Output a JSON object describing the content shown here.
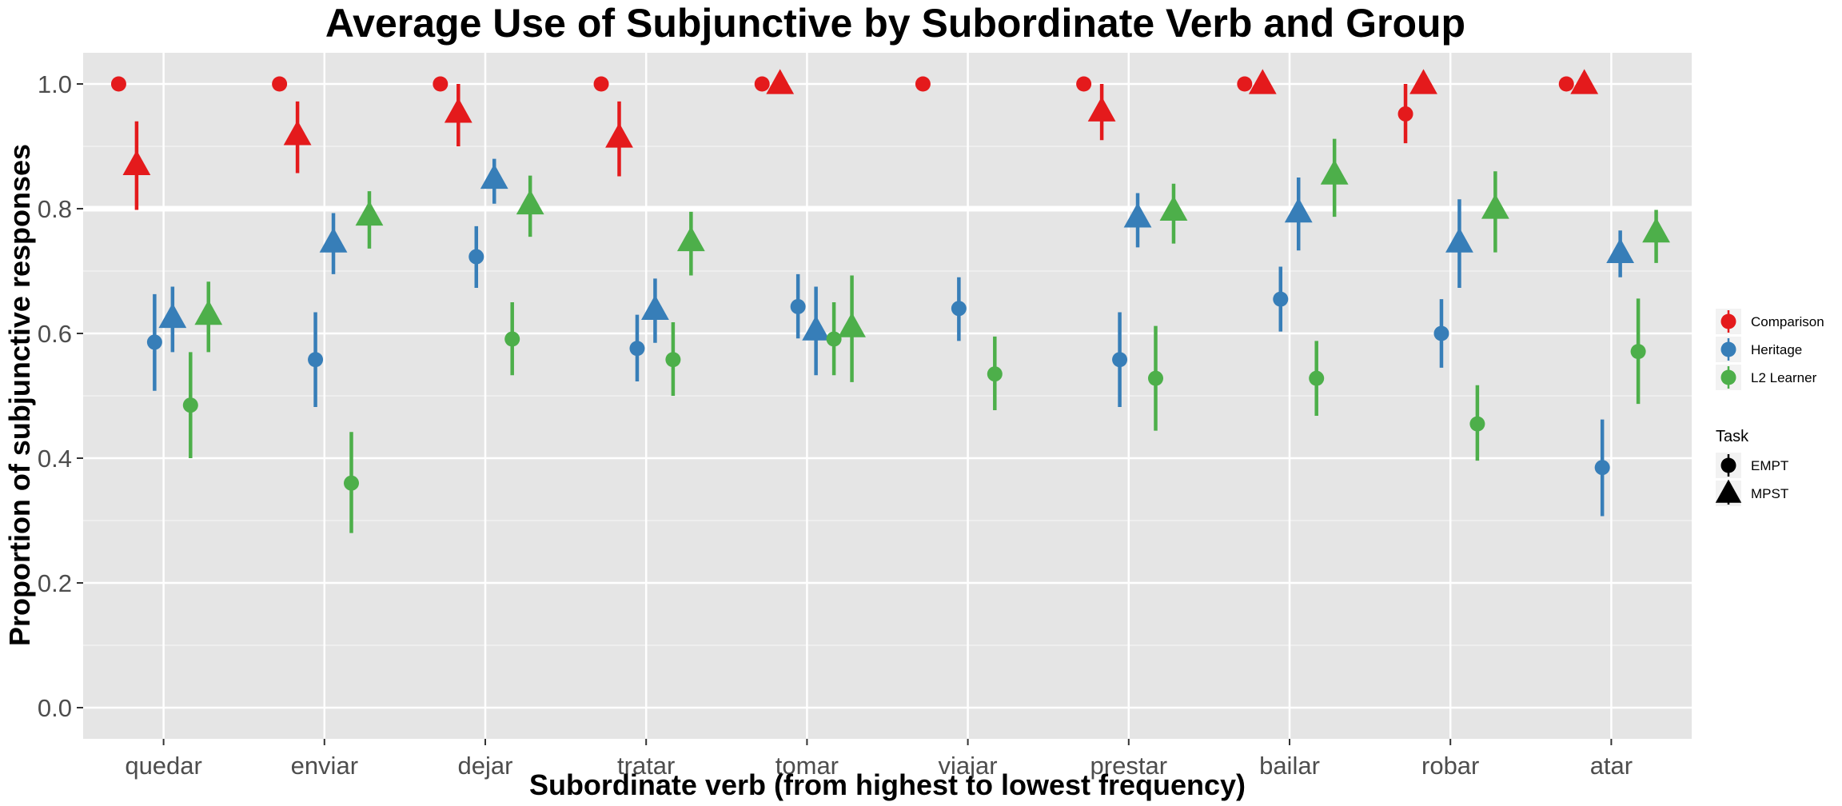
{
  "chart_data": {
    "type": "scatter",
    "title": "Average Use of Subjunctive by Subordinate Verb and Group",
    "xlabel": "Subordinate verb (from highest to lowest frequency)",
    "ylabel": "Proportion of subjunctive responses",
    "categories": [
      "quedar",
      "enviar",
      "dejar",
      "tratar",
      "tomar",
      "viajar",
      "prestar",
      "bailar",
      "robar",
      "atar"
    ],
    "ylim": [
      -0.05,
      1.05
    ],
    "yticks": [
      "0.0",
      "0.2",
      "0.4",
      "0.6",
      "0.8",
      "1.0"
    ],
    "ytick_values": [
      0.0,
      0.2,
      0.4,
      0.6,
      0.8,
      1.0
    ],
    "highlight_gridline": 0.8,
    "grid": true,
    "legend_position": "right",
    "groups": [
      {
        "name": "Comparison",
        "color": "#E41A1C"
      },
      {
        "name": "Heritage",
        "color": "#377EB8"
      },
      {
        "name": "L2 Learner",
        "color": "#4DAF4A"
      }
    ],
    "tasks": [
      {
        "name": "EMPT",
        "shape": "circle"
      },
      {
        "name": "MPST",
        "shape": "triangle"
      }
    ],
    "legend_task_title": "Task",
    "series": [
      {
        "group": "Comparison",
        "task": "EMPT",
        "values": [
          1.0,
          1.0,
          1.0,
          1.0,
          1.0,
          1.0,
          1.0,
          1.0,
          0.952,
          1.0
        ],
        "lower": [
          null,
          null,
          null,
          null,
          null,
          null,
          null,
          null,
          0.905,
          null
        ],
        "upper": [
          null,
          null,
          null,
          null,
          null,
          null,
          null,
          null,
          1.0,
          null
        ]
      },
      {
        "group": "Comparison",
        "task": "MPST",
        "values": [
          0.87,
          0.918,
          0.954,
          0.914,
          1.0,
          null,
          0.956,
          1.0,
          1.0,
          1.0
        ],
        "lower": [
          0.798,
          0.857,
          0.9,
          0.852,
          null,
          null,
          0.91,
          null,
          null,
          null
        ],
        "upper": [
          0.94,
          0.972,
          1.0,
          0.972,
          null,
          null,
          1.0,
          null,
          null,
          null
        ]
      },
      {
        "group": "Heritage",
        "task": "EMPT",
        "values": [
          0.586,
          0.558,
          0.723,
          0.576,
          0.643,
          0.64,
          0.558,
          0.655,
          0.6,
          0.385
        ],
        "lower": [
          0.508,
          0.482,
          0.673,
          0.523,
          0.592,
          0.588,
          0.482,
          0.603,
          0.545,
          0.307
        ],
        "upper": [
          0.663,
          0.634,
          0.772,
          0.63,
          0.695,
          0.69,
          0.634,
          0.707,
          0.655,
          0.462
        ]
      },
      {
        "group": "Heritage",
        "task": "MPST",
        "values": [
          0.625,
          0.746,
          0.848,
          0.638,
          0.605,
          null,
          0.786,
          0.794,
          0.746,
          0.729
        ],
        "lower": [
          0.57,
          0.695,
          0.808,
          0.585,
          0.533,
          null,
          0.738,
          0.733,
          0.673,
          0.69
        ],
        "upper": [
          0.675,
          0.793,
          0.88,
          0.688,
          0.675,
          null,
          0.825,
          0.85,
          0.815,
          0.765
        ]
      },
      {
        "group": "L2 Learner",
        "task": "EMPT",
        "values": [
          0.485,
          0.36,
          0.591,
          0.558,
          0.591,
          0.535,
          0.528,
          0.528,
          0.455,
          0.571
        ],
        "lower": [
          0.4,
          0.28,
          0.533,
          0.5,
          0.533,
          0.477,
          0.444,
          0.468,
          0.396,
          0.487
        ],
        "upper": [
          0.57,
          0.442,
          0.65,
          0.618,
          0.65,
          0.595,
          0.612,
          0.588,
          0.517,
          0.656
        ]
      },
      {
        "group": "L2 Learner",
        "task": "MPST",
        "values": [
          0.63,
          0.789,
          0.807,
          0.748,
          0.61,
          null,
          0.797,
          0.855,
          0.8,
          0.762
        ],
        "lower": [
          0.57,
          0.736,
          0.755,
          0.693,
          0.522,
          null,
          0.744,
          0.787,
          0.73,
          0.713
        ],
        "upper": [
          0.683,
          0.828,
          0.853,
          0.795,
          0.693,
          null,
          0.84,
          0.912,
          0.86,
          0.798
        ]
      }
    ]
  }
}
